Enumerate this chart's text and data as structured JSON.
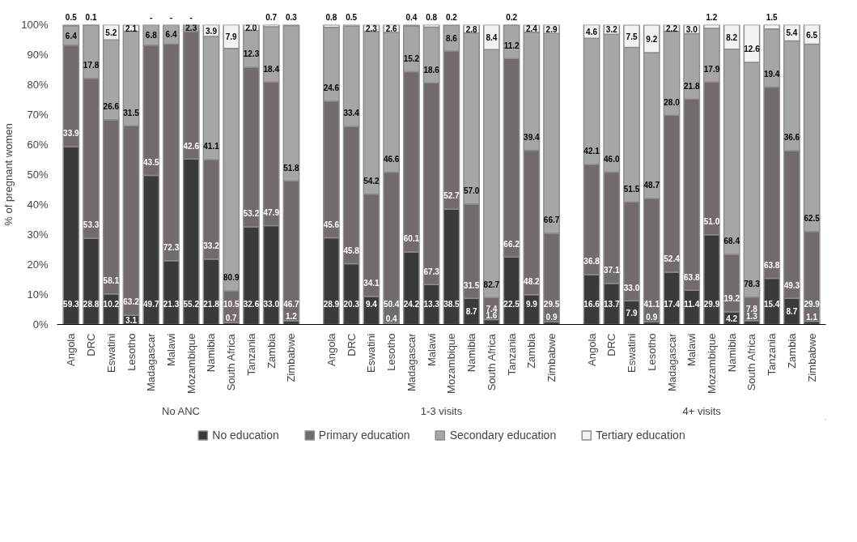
{
  "chart_data": {
    "type": "bar",
    "stacked": true,
    "ylabel": "% of pregnant women",
    "categories": [
      "Angola",
      "DRC",
      "Eswatini",
      "Lesotho",
      "Madagascar",
      "Malawi",
      "Mozambique",
      "Namibia",
      "South Africa",
      "Tanzania",
      "Zambia",
      "Zimbabwe",
      "Angola",
      "DRC",
      "Eswatini",
      "Lesotho",
      "Madagascar",
      "Malawi",
      "Mozambique",
      "Namibia",
      "South Africa",
      "Tanzania",
      "Zambia",
      "Zimbabwe",
      "Angola",
      "DRC",
      "Eswatini",
      "Lesotho",
      "Madagascar",
      "Malawi",
      "Mozambique",
      "Namibia",
      "South Africa",
      "Tanzania",
      "Zambia",
      "Zimbabwe"
    ],
    "annotations": [
      "No ANC",
      "1-3 visits",
      "4+ visits"
    ],
    "series": [
      {
        "name": "No education",
        "color": "#3a3a3a",
        "values": [
          59.3,
          28.8,
          10.2,
          3.1,
          49.7,
          21.3,
          55.2,
          21.8,
          0.7,
          32.6,
          33,
          1.2,
          28.9,
          20.3,
          9.4,
          0.4,
          24.2,
          13.3,
          38.5,
          8.7,
          1.6,
          22.5,
          9.9,
          0.9,
          16.6,
          13.7,
          7.9,
          0.9,
          17.4,
          11.4,
          29.9,
          4.2,
          1.3,
          15.4,
          8.7,
          1.1
        ],
        "value_labels": [
          "59.3",
          "28.8",
          "10.2",
          "3.1",
          "49.7",
          "21.3",
          "55.2",
          "21.8",
          "0.7",
          "32.6",
          "33.0",
          "1.2",
          "28.9",
          "20.3",
          "9.4",
          "0.4",
          "24.2",
          "13.3",
          "38.5",
          "8.7",
          "1.6",
          "22.5",
          "9.9",
          "0.9",
          "16.6",
          "13.7",
          "7.9",
          "0.9",
          "17.4",
          "11.4",
          "29.9",
          "4.2",
          "1.3",
          "15.4",
          "8.7",
          "1.1"
        ]
      },
      {
        "name": "Primary education",
        "color": "#726b6b",
        "values": [
          33.9,
          53.3,
          58.1,
          63.2,
          43.5,
          72.3,
          42.6,
          33.2,
          10.5,
          53.2,
          47.9,
          46.7,
          45.6,
          45.8,
          34.1,
          50.4,
          60.1,
          67.3,
          52.7,
          31.5,
          7.4,
          66.2,
          48.2,
          29.5,
          36.8,
          37.1,
          33,
          41.1,
          52.4,
          63.8,
          51,
          19.2,
          7.8,
          63.8,
          49.3,
          29.9
        ],
        "value_labels": [
          "33.9",
          "53.3",
          "58.1",
          "63.2",
          "43.5",
          "72.3",
          "42.6",
          "33.2",
          "10.5",
          "53.2",
          "47.9",
          "46.7",
          "45.6",
          "45.8",
          "34.1",
          "50.4",
          "60.1",
          "67.3",
          "52.7",
          "31.5",
          "7.4",
          "66.2",
          "48.2",
          "29.5",
          "36.8",
          "37.1",
          "33.0",
          "41.1",
          "52.4",
          "63.8",
          "51.0",
          "19.2",
          "7.8",
          "63.8",
          "49.3",
          "29.9"
        ]
      },
      {
        "name": "Secondary education",
        "color": "#a6a6a6",
        "values": [
          6.4,
          17.8,
          26.6,
          31.5,
          6.8,
          6.4,
          2.3,
          41.1,
          80.9,
          12.3,
          18.4,
          51.8,
          24.6,
          33.4,
          54.2,
          46.6,
          15.2,
          18.6,
          8.6,
          57,
          82.7,
          11.2,
          39.4,
          66.7,
          42.1,
          46,
          51.5,
          48.7,
          28,
          21.8,
          17.9,
          68.4,
          78.3,
          19.4,
          36.6,
          62.5
        ],
        "value_labels": [
          "6.4",
          "17.8",
          "26.6",
          "31.5",
          "6.8",
          "6.4",
          "2.3",
          "41.1",
          "80.9",
          "12.3",
          "18.4",
          "51.8",
          "24.6",
          "33.4",
          "54.2",
          "46.6",
          "15.2",
          "18.6",
          "8.6",
          "57.0",
          "82.7",
          "11.2",
          "39.4",
          "66.7",
          "42.1",
          "46.0",
          "51.5",
          "48.7",
          "28.0",
          "21.8",
          "17.9",
          "68.4",
          "78.3",
          "19.4",
          "36.6",
          "62.5"
        ]
      },
      {
        "name": "Tertiary education",
        "color": "#f2f2f2",
        "values": [
          0.5,
          0.1,
          5.2,
          2.1,
          0,
          0,
          0,
          3.9,
          7.9,
          2,
          0.7,
          0.3,
          0.8,
          0.5,
          2.3,
          2.6,
          0.4,
          0.8,
          0.2,
          2.8,
          8.4,
          0.2,
          2.4,
          2.9,
          4.6,
          3.2,
          7.5,
          9.2,
          2.2,
          3,
          1.2,
          8.2,
          12.6,
          1.5,
          5.4,
          6.5
        ],
        "value_labels": [
          "0.5",
          "0.1",
          "5.2",
          "2.1",
          "-",
          "-",
          "-",
          "3.9",
          "7.9",
          "2.0",
          "0.7",
          "0.3",
          "0.8",
          "0.5",
          "2.3",
          "2.6",
          "0.4",
          "0.8",
          "0.2",
          "2.8",
          "8.4",
          "0.2",
          "2.4",
          "2.9",
          "4.6",
          "3.2",
          "7.5",
          "9.2",
          "2.2",
          "3.0",
          "1.2",
          "8.2",
          "12.6",
          "1.5",
          "5.4",
          "6.5"
        ]
      }
    ],
    "ylim": [
      0,
      100
    ],
    "yticks": [
      {
        "value": 0,
        "label": "0%"
      },
      {
        "value": 10,
        "label": "10%"
      },
      {
        "value": 20,
        "label": "20%"
      },
      {
        "value": 30,
        "label": "30%"
      },
      {
        "value": 40,
        "label": "40%"
      },
      {
        "value": 50,
        "label": "50%"
      },
      {
        "value": 60,
        "label": "60%"
      },
      {
        "value": 70,
        "label": "70%"
      },
      {
        "value": 80,
        "label": "80%"
      },
      {
        "value": 90,
        "label": "90%"
      },
      {
        "value": 100,
        "label": "100%"
      }
    ],
    "grid": false,
    "legend": "bottom"
  }
}
